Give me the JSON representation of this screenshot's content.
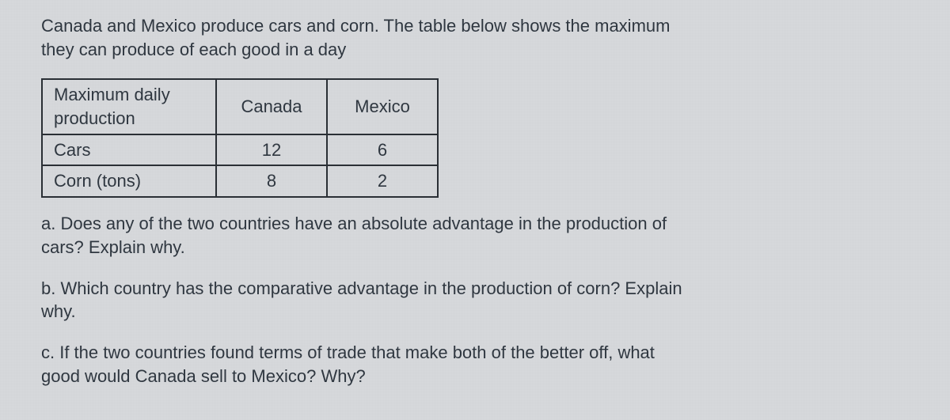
{
  "intro": {
    "line1": "Canada and Mexico produce cars and corn. The table below shows the maximum",
    "line2": "they can produce of each good in a day"
  },
  "table": {
    "header": {
      "rowlabel_line1": "Maximum daily",
      "rowlabel_line2": "production",
      "col1": "Canada",
      "col2": "Mexico"
    },
    "rows": [
      {
        "label": "Cars",
        "c1": "12",
        "c2": "6"
      },
      {
        "label": "Corn (tons)",
        "c1": "8",
        "c2": "2"
      }
    ],
    "border_color": "#2a2f35",
    "cell_fontsize": 22
  },
  "questions": {
    "a": {
      "line1": "a. Does any of the two countries have an absolute advantage in the production of",
      "line2": "cars? Explain why."
    },
    "b": {
      "line1": "b. Which country has the comparative advantage in the production of corn? Explain",
      "line2": "why."
    },
    "c": {
      "line1": "c. If the two countries found terms of trade that make both of the better off, what",
      "line2": "good would Canada sell to Mexico? Why?"
    }
  },
  "colors": {
    "background": "#d8dadd",
    "text": "#2f3740",
    "border": "#2a2f35"
  },
  "typography": {
    "body_fontsize": 22,
    "font_family": "Helvetica Neue / Arial"
  }
}
